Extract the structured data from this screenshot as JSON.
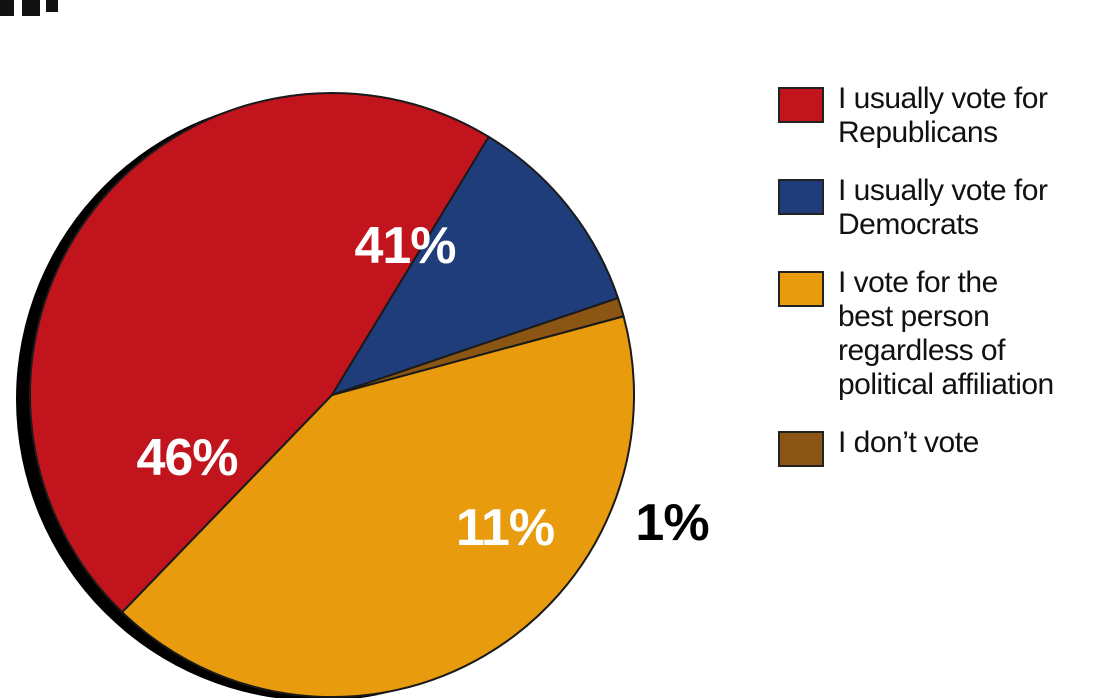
{
  "chart_data": {
    "type": "pie",
    "slices": [
      {
        "label": "I usually vote for\nRepublicans",
        "value": 46,
        "display": "46%",
        "color": "#c2141c"
      },
      {
        "label": "I usually vote for\nDemocrats",
        "value": 11,
        "display": "11%",
        "color": "#1f3d7a"
      },
      {
        "label": "I don’t vote",
        "value": 1,
        "display": "1%",
        "color": "#8b5513"
      },
      {
        "label": "I vote for the\nbest person\nregardless of\npolitical affiliation",
        "value": 41,
        "display": "41%",
        "color": "#e89b0c"
      }
    ],
    "legend_order": [
      0,
      1,
      3,
      2
    ],
    "legend_placement": "right"
  }
}
